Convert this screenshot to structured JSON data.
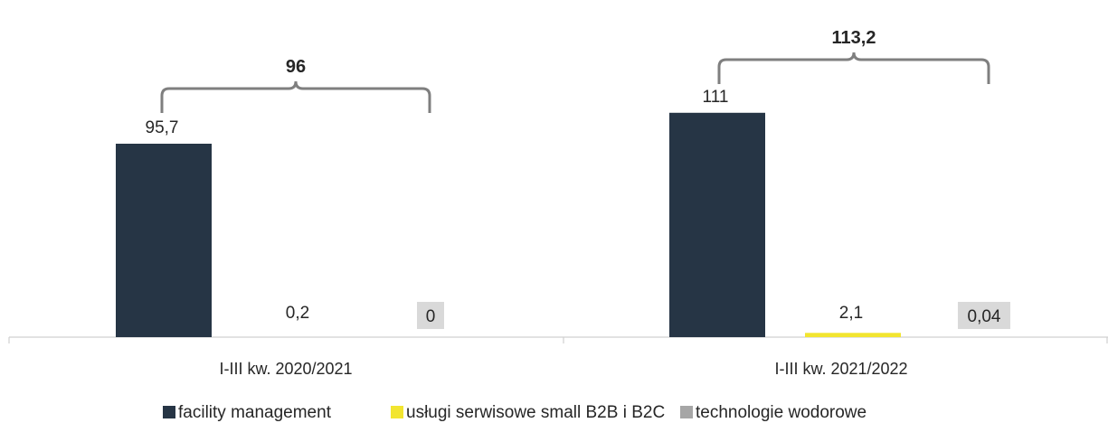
{
  "chart_data": {
    "type": "bar",
    "categories": [
      "I-III kw. 2020/2021",
      "I-III kw. 2021/2022"
    ],
    "series": [
      {
        "name": "facility management",
        "values": [
          95.7,
          111
        ],
        "labels": [
          "95,7",
          "111"
        ],
        "color": "#263545"
      },
      {
        "name": "usługi serwisowe small B2B i B2C",
        "values": [
          0.2,
          2.1
        ],
        "labels": [
          "0,2",
          "2,1"
        ],
        "color": "#F2E530"
      },
      {
        "name": "technologie wodorowe",
        "values": [
          0,
          0.04
        ],
        "labels": [
          "0",
          "0,04"
        ],
        "color": "#A6A6A6"
      }
    ],
    "totals": [
      "96",
      "113,2"
    ],
    "title": "",
    "xlabel": "",
    "ylabel": "",
    "ylim": [
      0,
      125
    ],
    "grid": false,
    "legend_position": "bottom"
  }
}
